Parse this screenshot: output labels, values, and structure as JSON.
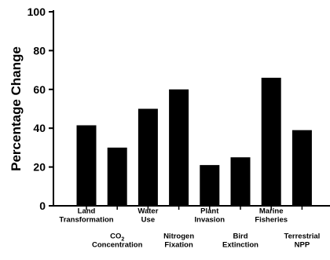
{
  "chart_data": {
    "type": "bar",
    "title": "",
    "xlabel": "",
    "ylabel": "Percentage Change",
    "ylim": [
      0,
      100
    ],
    "yticks": [
      0,
      20,
      40,
      60,
      80,
      100
    ],
    "grid": false,
    "bar_color": "#000000",
    "categories": [
      "Land Transformation",
      "CO2 Concentration",
      "Water Use",
      "Nitrogen Fixation",
      "Plant Invasion",
      "Bird Extinction",
      "Marine Fisheries",
      "Terrestrial NPP"
    ],
    "category_labels": [
      {
        "lines": [
          "Land",
          "Transformation"
        ],
        "tier": "upper"
      },
      {
        "lines": [
          "CO2",
          "Concentration"
        ],
        "tier": "lower",
        "subscript_line": 0,
        "subscript_chars": 1
      },
      {
        "lines": [
          "Water",
          "Use"
        ],
        "tier": "upper"
      },
      {
        "lines": [
          "Nitrogen",
          "Fixation"
        ],
        "tier": "lower"
      },
      {
        "lines": [
          "Plant",
          "Invasion"
        ],
        "tier": "upper"
      },
      {
        "lines": [
          "Bird",
          "Extinction"
        ],
        "tier": "lower"
      },
      {
        "lines": [
          "Marine",
          "Fisheries"
        ],
        "tier": "upper"
      },
      {
        "lines": [
          "Terrestrial",
          "NPP"
        ],
        "tier": "lower"
      }
    ],
    "values": [
      41.5,
      30,
      50,
      60,
      21,
      25,
      66,
      39
    ]
  }
}
